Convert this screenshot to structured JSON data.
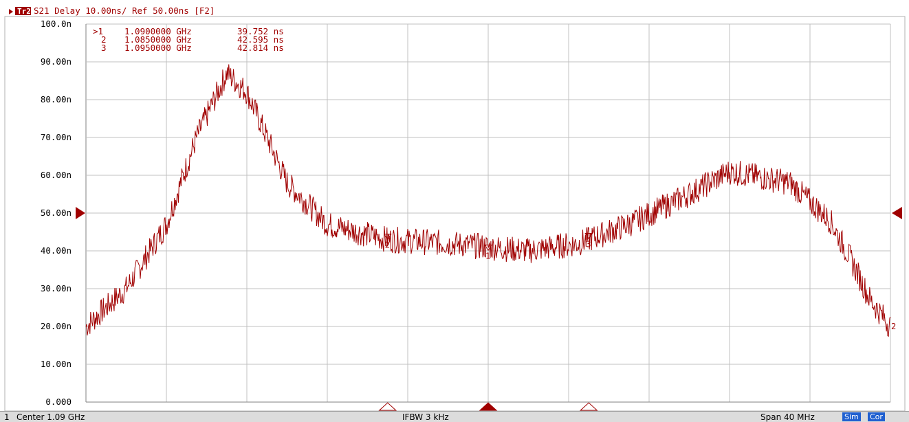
{
  "header": {
    "trace_badge": "Tr2",
    "trace_info": "S21 Delay 10.00ns/ Ref 50.00ns [F2]"
  },
  "markers": [
    {
      "id": "1",
      "label": ">1",
      "freq": "1.0900000 GHz",
      "value": "39.752 ns"
    },
    {
      "id": "2",
      "label": "2",
      "freq": "1.0850000 GHz",
      "value": "42.595 ns"
    },
    {
      "id": "3",
      "label": "3",
      "freq": "1.0950000 GHz",
      "value": "42.814 ns"
    }
  ],
  "status": {
    "channel": "1",
    "center": "Center 1.09 GHz",
    "ifbw": "IFBW 3 kHz",
    "span": "Span 40 MHz",
    "sim": "Sim",
    "cor": "Cor"
  },
  "colors": {
    "trace": "#a00000",
    "grid": "#c0c0c0",
    "text": "#a00000",
    "sim_badge": "#2060d0",
    "cor_badge": "#2060d0"
  },
  "chart_data": {
    "type": "line",
    "xlim": [
      1.07,
      1.11
    ],
    "ylim": [
      0,
      100
    ],
    "y_unit": "ns",
    "ytick_labels": [
      "0.000",
      "10.00n",
      "20.00n",
      "30.00n",
      "40.00n",
      "50.00n",
      "60.00n",
      "70.00n",
      "80.00n",
      "90.00n",
      "100.0n"
    ],
    "grid": true,
    "reference_level": 50,
    "series": [
      {
        "x": [
          1.07,
          1.072,
          1.074,
          1.0755,
          1.077,
          1.078,
          1.079,
          1.08,
          1.082,
          1.085,
          1.088,
          1.09,
          1.092,
          1.0945,
          1.095,
          1.097,
          1.1,
          1.102,
          1.105,
          1.107,
          1.108,
          1.109,
          1.11
        ],
        "y": [
          20,
          30,
          47,
          70,
          87,
          82,
          70,
          58,
          47,
          43,
          42,
          41,
          40,
          42,
          43,
          47,
          55,
          61,
          58,
          48,
          38,
          27,
          20
        ],
        "noise": 3.5
      }
    ],
    "markers": [
      {
        "id": "1",
        "x": 1.09,
        "y": 39.752
      },
      {
        "id": "2",
        "x": 1.085,
        "y": 42.595
      },
      {
        "id": "3",
        "x": 1.095,
        "y": 42.814
      }
    ]
  }
}
